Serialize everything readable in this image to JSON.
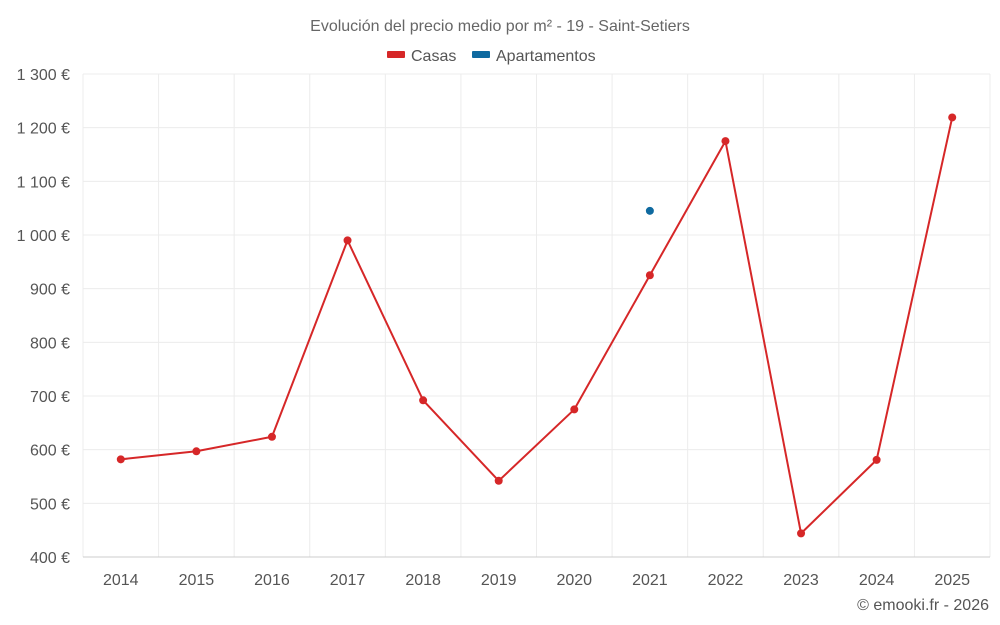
{
  "chart_data": {
    "type": "line",
    "title": "Evolución del precio medio por m² - 19 - Saint-Setiers",
    "categories": [
      "2014",
      "2015",
      "2016",
      "2017",
      "2018",
      "2019",
      "2020",
      "2021",
      "2022",
      "2023",
      "2024",
      "2025"
    ],
    "series": [
      {
        "name": "Casas",
        "color": "#d62728",
        "values": [
          582,
          597,
          624,
          990,
          692,
          542,
          675,
          925,
          1175,
          444,
          581,
          1219
        ]
      },
      {
        "name": "Apartamentos",
        "color": "#0f6aa0",
        "values": [
          null,
          null,
          null,
          null,
          null,
          null,
          null,
          1045,
          null,
          null,
          null,
          null
        ]
      }
    ],
    "ylim": [
      400,
      1300
    ],
    "yticks": [
      400,
      500,
      600,
      700,
      800,
      900,
      1000,
      1100,
      1200,
      1300
    ],
    "ytick_labels": [
      "400 €",
      "500 €",
      "600 €",
      "700 €",
      "800 €",
      "900 €",
      "1 000 €",
      "1 100 €",
      "1 200 €",
      "1 300 €"
    ],
    "xlabel": "",
    "ylabel": "",
    "grid": true,
    "legend_position": "top-center"
  },
  "credit": "© emooki.fr - 2026"
}
